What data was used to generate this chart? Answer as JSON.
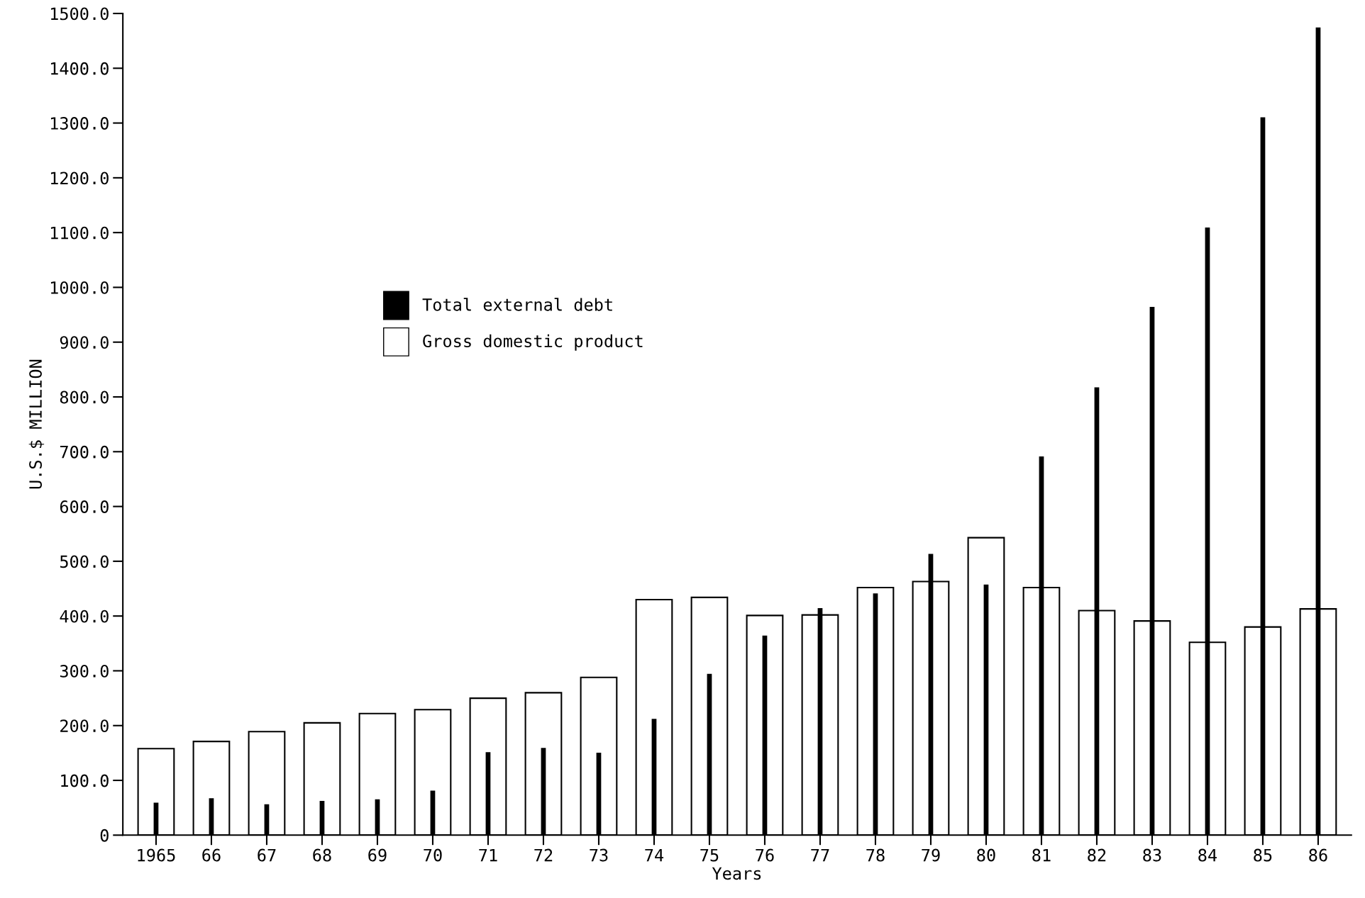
{
  "chart_data": {
    "type": "bar",
    "xlabel": "Years",
    "ylabel": "U.S.$ MILLION",
    "categories": [
      "1965",
      "66",
      "67",
      "68",
      "69",
      "70",
      "71",
      "72",
      "73",
      "74",
      "75",
      "76",
      "77",
      "78",
      "79",
      "80",
      "81",
      "82",
      "83",
      "84",
      "85",
      "86"
    ],
    "series": [
      {
        "name": "Gross domestic product",
        "color": "#ffffff",
        "values": [
          158,
          171,
          189,
          205,
          222,
          229,
          250,
          260,
          288,
          430,
          434,
          401,
          402,
          452,
          463,
          543,
          452,
          410,
          391,
          352,
          380,
          413
        ]
      },
      {
        "name": "Total external debt",
        "color": "#000000",
        "values": [
          58,
          66,
          55,
          61,
          64,
          80,
          150,
          158,
          149,
          211,
          293,
          363,
          413,
          440,
          512,
          456,
          690,
          816,
          963,
          1108,
          1309,
          1473
        ]
      }
    ],
    "ylim": [
      0,
      1500
    ],
    "yticks": [
      0,
      {
        "value": 100,
        "label": "100.0"
      },
      {
        "value": 200,
        "label": "200.0"
      },
      {
        "value": 300,
        "label": "300.0"
      },
      {
        "value": 400,
        "label": "400.0"
      },
      {
        "value": 500,
        "label": "500.0"
      },
      {
        "value": 600,
        "label": "600.0"
      },
      {
        "value": 700,
        "label": "700.0"
      },
      {
        "value": 800,
        "label": "800.0"
      },
      {
        "value": 900,
        "label": "900.0"
      },
      {
        "value": 1000,
        "label": "1000.0"
      },
      {
        "value": 1100,
        "label": "1100.0"
      },
      {
        "value": 1200,
        "label": "1200.0"
      },
      {
        "value": 1300,
        "label": "1300.0"
      },
      {
        "value": 1400,
        "label": "1400.0"
      },
      {
        "value": 1500,
        "label": "1500.0"
      }
    ],
    "grid": false,
    "legend": "top left"
  }
}
